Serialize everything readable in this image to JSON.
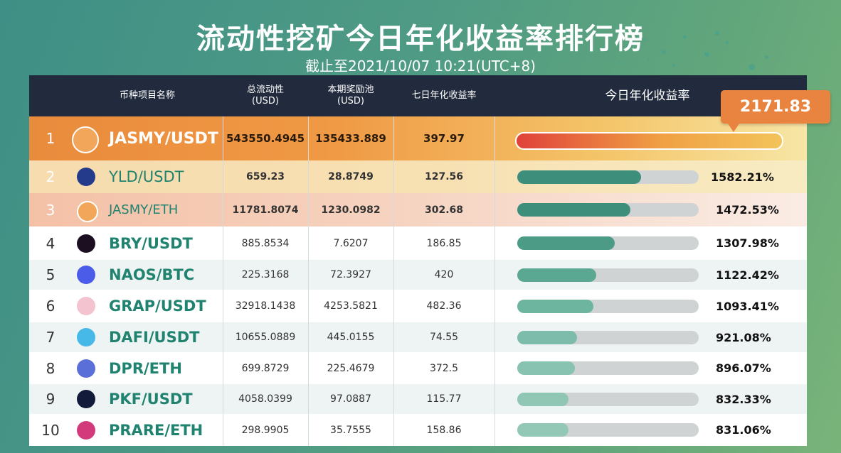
{
  "title": "流动性挖矿今日年化收益率排行榜",
  "subtitle": "截止至2021/10/07 10:21(UTC+8)",
  "headers": {
    "name": "币种项目名称",
    "tvl": "总流动性\n(USD)",
    "pool": "本期奖励池\n(USD)",
    "apy7d": "七日年化收益率",
    "apy_today": "今日年化收益率"
  },
  "top_value_callout": "2171.83",
  "chart_data": {
    "type": "bar",
    "title": "流动性挖矿今日年化收益率排行榜",
    "categories": [
      "JASMY/USDT",
      "YLD/USDT",
      "JASMY/ETH",
      "BRY/USDT",
      "NAOS/BTC",
      "GRAP/USDT",
      "DAFI/USDT",
      "DPR/ETH",
      "PKF/USDT",
      "PRARE/ETH"
    ],
    "values": [
      2171.83,
      1582.21,
      1472.53,
      1307.98,
      1122.42,
      1093.41,
      921.08,
      896.07,
      832.33,
      831.06
    ],
    "value_labels": [
      "2171.83",
      "1582.21%",
      "1472.53%",
      "1307.98%",
      "1122.42%",
      "1093.41%",
      "921.08%",
      "896.07%",
      "832.33%",
      "831.06%"
    ],
    "xlabel": "",
    "ylabel": "今日年化收益率"
  },
  "rows": [
    {
      "rank": "1",
      "name": "JASMY/USDT",
      "tvl": "543550.4945",
      "pool": "135433.889",
      "apy7d": "397.97",
      "icon": "jasmy-icon",
      "icon_color": "#f2a65a"
    },
    {
      "rank": "2",
      "name": "YLD/USDT",
      "tvl": "659.23",
      "pool": "28.8749",
      "apy7d": "127.56",
      "icon": "yld-icon",
      "icon_color": "#243a8a"
    },
    {
      "rank": "3",
      "name": "JASMY/ETH",
      "tvl": "11781.8074",
      "pool": "1230.0982",
      "apy7d": "302.68",
      "icon": "jasmy-icon",
      "icon_color": "#f2a65a"
    },
    {
      "rank": "4",
      "name": "BRY/USDT",
      "tvl": "885.8534",
      "pool": "7.6207",
      "apy7d": "186.85",
      "icon": "bry-icon",
      "icon_color": "#1d0f22"
    },
    {
      "rank": "5",
      "name": "NAOS/BTC",
      "tvl": "225.3168",
      "pool": "72.3927",
      "apy7d": "420",
      "icon": "naos-icon",
      "icon_color": "#4a5ce8"
    },
    {
      "rank": "6",
      "name": "GRAP/USDT",
      "tvl": "32918.1438",
      "pool": "4253.5821",
      "apy7d": "482.36",
      "icon": "grap-icon",
      "icon_color": "#f3c3cf"
    },
    {
      "rank": "7",
      "name": "DAFI/USDT",
      "tvl": "10655.0889",
      "pool": "445.0155",
      "apy7d": "74.55",
      "icon": "dafi-icon",
      "icon_color": "#46b9e8"
    },
    {
      "rank": "8",
      "name": "DPR/ETH",
      "tvl": "699.8729",
      "pool": "225.4679",
      "apy7d": "372.5",
      "icon": "dpr-icon",
      "icon_color": "#5b6fd9"
    },
    {
      "rank": "9",
      "name": "PKF/USDT",
      "tvl": "4058.0399",
      "pool": "97.0887",
      "apy7d": "115.77",
      "icon": "pkf-icon",
      "icon_color": "#121c3a"
    },
    {
      "rank": "10",
      "name": "PRARE/ETH",
      "tvl": "298.9905",
      "pool": "35.7555",
      "apy7d": "158.86",
      "icon": "prare-icon",
      "icon_color": "#d23a7b"
    }
  ]
}
